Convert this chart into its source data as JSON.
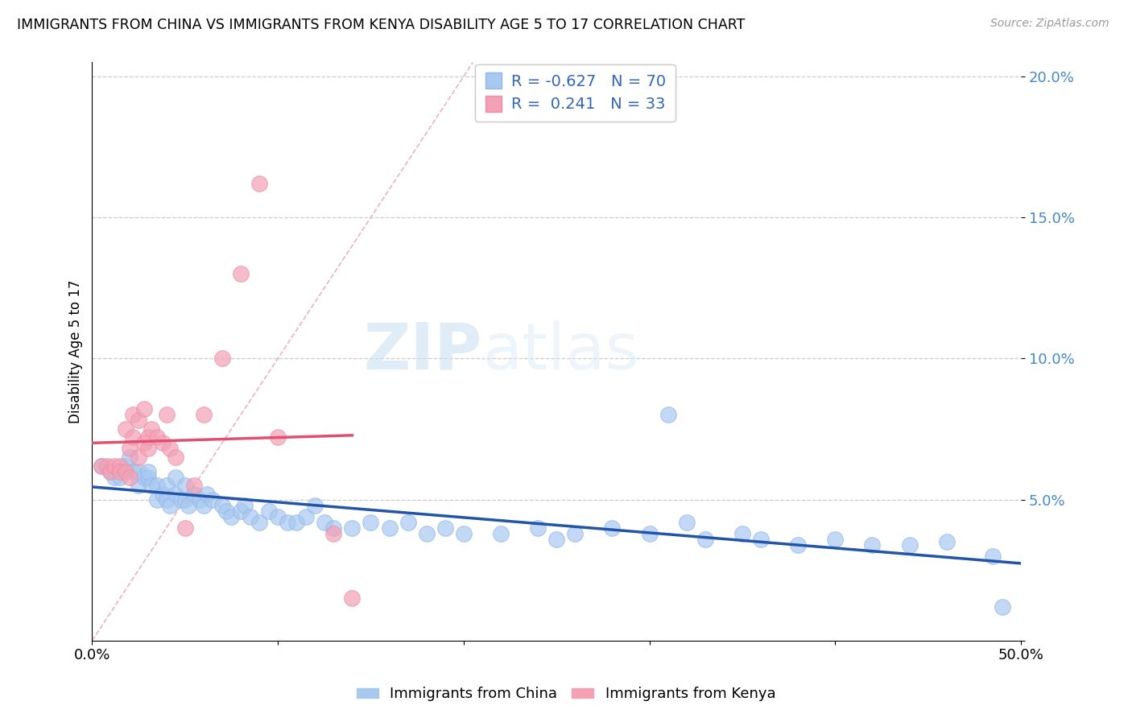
{
  "title": "IMMIGRANTS FROM CHINA VS IMMIGRANTS FROM KENYA DISABILITY AGE 5 TO 17 CORRELATION CHART",
  "source": "Source: ZipAtlas.com",
  "ylabel": "Disability Age 5 to 17",
  "x_min": 0.0,
  "x_max": 0.5,
  "y_min": 0.0,
  "y_max": 0.205,
  "china_R": -0.627,
  "china_N": 70,
  "kenya_R": 0.241,
  "kenya_N": 33,
  "china_color": "#a8c8f0",
  "kenya_color": "#f4a0b5",
  "china_line_color": "#2255aa",
  "kenya_line_color": "#e05070",
  "diag_color": "#cccccc",
  "watermark_zip": "ZIP",
  "watermark_atlas": "atlas",
  "china_scatter_x": [
    0.005,
    0.01,
    0.012,
    0.015,
    0.018,
    0.02,
    0.022,
    0.025,
    0.025,
    0.028,
    0.03,
    0.03,
    0.032,
    0.035,
    0.035,
    0.038,
    0.04,
    0.04,
    0.042,
    0.045,
    0.045,
    0.048,
    0.05,
    0.05,
    0.052,
    0.055,
    0.058,
    0.06,
    0.062,
    0.065,
    0.07,
    0.072,
    0.075,
    0.08,
    0.082,
    0.085,
    0.09,
    0.095,
    0.1,
    0.105,
    0.11,
    0.115,
    0.12,
    0.125,
    0.13,
    0.14,
    0.15,
    0.16,
    0.17,
    0.18,
    0.19,
    0.2,
    0.22,
    0.24,
    0.25,
    0.26,
    0.28,
    0.3,
    0.31,
    0.32,
    0.33,
    0.35,
    0.36,
    0.38,
    0.4,
    0.42,
    0.44,
    0.46,
    0.485,
    0.49
  ],
  "china_scatter_y": [
    0.062,
    0.06,
    0.058,
    0.058,
    0.062,
    0.065,
    0.06,
    0.055,
    0.06,
    0.058,
    0.058,
    0.06,
    0.055,
    0.05,
    0.055,
    0.052,
    0.05,
    0.055,
    0.048,
    0.052,
    0.058,
    0.05,
    0.05,
    0.055,
    0.048,
    0.052,
    0.05,
    0.048,
    0.052,
    0.05,
    0.048,
    0.046,
    0.044,
    0.046,
    0.048,
    0.044,
    0.042,
    0.046,
    0.044,
    0.042,
    0.042,
    0.044,
    0.048,
    0.042,
    0.04,
    0.04,
    0.042,
    0.04,
    0.042,
    0.038,
    0.04,
    0.038,
    0.038,
    0.04,
    0.036,
    0.038,
    0.04,
    0.038,
    0.08,
    0.042,
    0.036,
    0.038,
    0.036,
    0.034,
    0.036,
    0.034,
    0.034,
    0.035,
    0.03,
    0.012
  ],
  "kenya_scatter_x": [
    0.005,
    0.008,
    0.01,
    0.012,
    0.015,
    0.015,
    0.018,
    0.018,
    0.02,
    0.02,
    0.022,
    0.022,
    0.025,
    0.025,
    0.028,
    0.028,
    0.03,
    0.03,
    0.032,
    0.035,
    0.038,
    0.04,
    0.042,
    0.045,
    0.05,
    0.055,
    0.06,
    0.07,
    0.08,
    0.09,
    0.1,
    0.13,
    0.14
  ],
  "kenya_scatter_y": [
    0.062,
    0.062,
    0.06,
    0.062,
    0.062,
    0.06,
    0.06,
    0.075,
    0.058,
    0.068,
    0.072,
    0.08,
    0.065,
    0.078,
    0.07,
    0.082,
    0.068,
    0.072,
    0.075,
    0.072,
    0.07,
    0.08,
    0.068,
    0.065,
    0.04,
    0.055,
    0.08,
    0.1,
    0.13,
    0.162,
    0.072,
    0.038,
    0.015
  ]
}
